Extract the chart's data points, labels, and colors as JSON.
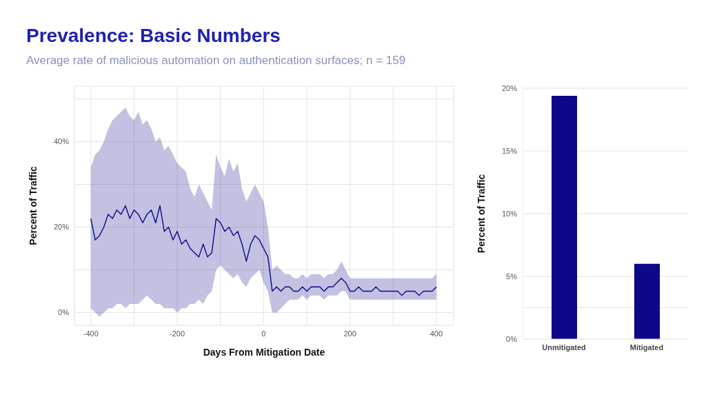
{
  "chart_data": [
    {
      "type": "line",
      "title": "Prevalence: Basic Numbers",
      "subtitle": "Average rate of malicious automation on authentication surfaces; n = 159",
      "xlabel": "Days From Mitigation Date",
      "ylabel": "Percent of Traffic",
      "x": [
        -400,
        -390,
        -380,
        -370,
        -360,
        -350,
        -340,
        -330,
        -320,
        -310,
        -300,
        -290,
        -280,
        -270,
        -260,
        -250,
        -240,
        -230,
        -220,
        -210,
        -200,
        -190,
        -180,
        -170,
        -160,
        -150,
        -140,
        -130,
        -120,
        -110,
        -100,
        -90,
        -80,
        -70,
        -60,
        -50,
        -40,
        -30,
        -20,
        -10,
        0,
        10,
        20,
        30,
        40,
        50,
        60,
        70,
        80,
        90,
        100,
        110,
        120,
        130,
        140,
        150,
        160,
        170,
        180,
        190,
        200,
        210,
        220,
        230,
        240,
        250,
        260,
        270,
        280,
        290,
        300,
        310,
        320,
        330,
        340,
        350,
        360,
        370,
        380,
        390,
        400
      ],
      "series": [
        {
          "color": "#0d0887",
          "values": [
            22,
            17,
            18,
            20,
            23,
            22,
            24,
            23,
            25,
            22,
            24,
            23,
            21,
            23,
            24,
            21,
            25,
            19,
            20,
            17,
            19,
            16,
            17,
            15,
            14,
            13,
            16,
            13,
            14,
            22,
            21,
            19,
            20,
            18,
            19,
            16,
            12,
            16,
            18,
            17,
            15,
            13,
            5,
            6,
            5,
            6,
            6,
            5,
            5,
            6,
            5,
            6,
            6,
            6,
            5,
            6,
            6,
            7,
            8,
            7,
            5,
            5,
            6,
            5,
            5,
            5,
            6,
            5,
            5,
            5,
            5,
            5,
            4,
            5,
            5,
            5,
            4,
            5,
            5,
            5,
            6
          ],
          "lower": [
            1,
            0,
            -1,
            0,
            1,
            1,
            2,
            2,
            1,
            2,
            2,
            2,
            3,
            4,
            3,
            2,
            2,
            1,
            1,
            1,
            0,
            1,
            1,
            2,
            2,
            3,
            2,
            4,
            5,
            10,
            11,
            10,
            9,
            8,
            9,
            7,
            6,
            8,
            9,
            10,
            7,
            5,
            0,
            0,
            1,
            2,
            3,
            3,
            3,
            4,
            3,
            4,
            4,
            4,
            3,
            4,
            4,
            4,
            5,
            5,
            3,
            3,
            3,
            3,
            3,
            3,
            3,
            3,
            3,
            3,
            3,
            3,
            3,
            3,
            3,
            3,
            3,
            3,
            3,
            3,
            3
          ],
          "upper": [
            34,
            37,
            38,
            40,
            43,
            45,
            46,
            47,
            48,
            46,
            45,
            47,
            44,
            45,
            43,
            40,
            41,
            38,
            39,
            37,
            35,
            34,
            33,
            29,
            27,
            30,
            28,
            26,
            24,
            37,
            34,
            32,
            36,
            33,
            35,
            29,
            26,
            28,
            30,
            28,
            26,
            20,
            10,
            11,
            10,
            9,
            9,
            8,
            8,
            9,
            8,
            9,
            9,
            9,
            8,
            9,
            9,
            10,
            12,
            10,
            8,
            8,
            8,
            8,
            8,
            8,
            8,
            8,
            8,
            8,
            8,
            8,
            8,
            8,
            8,
            8,
            8,
            8,
            8,
            8,
            9
          ]
        }
      ],
      "xlim": [
        -438,
        440
      ],
      "xticks": [
        -400,
        {
          "value": -300,
          "label": null
        },
        -200,
        {
          "value": -100,
          "label": null
        },
        0,
        {
          "value": 100,
          "label": null
        },
        200,
        {
          "value": 300,
          "label": null
        },
        400
      ],
      "ylim": [
        -3,
        53
      ],
      "yticks": [
        {
          "value": 0,
          "label": "0%"
        },
        {
          "value": 10,
          "label": null
        },
        {
          "value": 20,
          "label": "20%"
        },
        {
          "value": 30,
          "label": null
        },
        {
          "value": 40,
          "label": "40%"
        },
        {
          "value": 50,
          "label": null
        }
      ],
      "grid": true
    },
    {
      "type": "bar",
      "ylabel": "Percent of Traffic",
      "categories": [
        "Unmitigated",
        "Mitigated"
      ],
      "values": [
        19.4,
        6.0
      ],
      "color": "#0d0887",
      "ylim": [
        0,
        20
      ],
      "yticks": [
        {
          "value": 0,
          "label": "0%"
        },
        {
          "value": 2.5,
          "label": null
        },
        {
          "value": 5,
          "label": "5%"
        },
        {
          "value": 10,
          "label": "10%"
        },
        {
          "value": 15,
          "label": "15%"
        },
        {
          "value": 20,
          "label": "20%"
        }
      ],
      "grid": "y"
    }
  ]
}
